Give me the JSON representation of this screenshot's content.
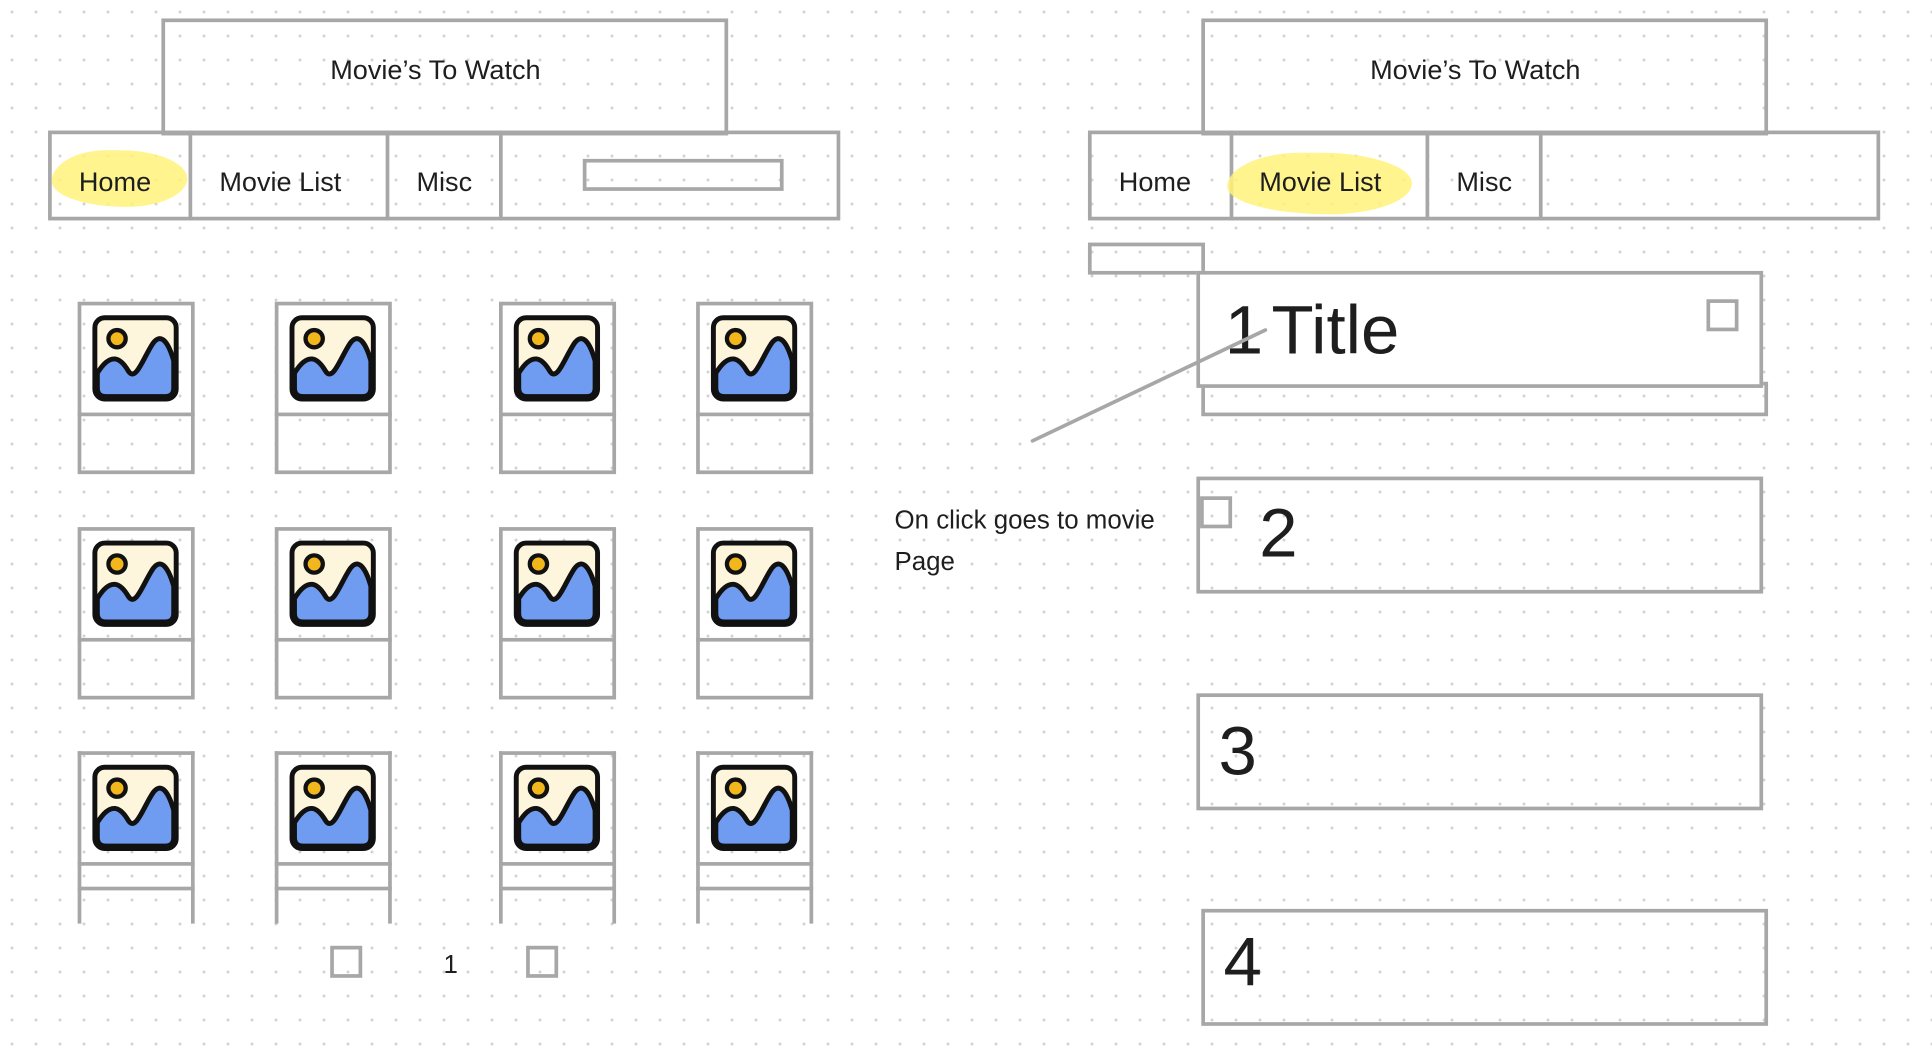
{
  "left_wireframe": {
    "title": "Movie’s To Watch",
    "nav": [
      "Home",
      "Movie List",
      "Misc"
    ],
    "active_tab": "Home",
    "pager_page": "1"
  },
  "right_wireframe": {
    "title": "Movie’s To Watch",
    "nav": [
      "Home",
      "Movie List",
      "Misc"
    ],
    "active_tab": "Movie List",
    "rows": [
      {
        "number": "1",
        "title": "Title"
      },
      {
        "number": "2"
      },
      {
        "number": "3"
      },
      {
        "number": "4"
      }
    ]
  },
  "annotation": {
    "line1": "On click goes to movie",
    "line2": "Page"
  },
  "colors": {
    "wire": "#a7a7a7",
    "highlight": "#fff27a",
    "icon_frame": "#fdf5dc",
    "icon_mountain": "#6f9cf0",
    "icon_sun": "#f2b71c"
  }
}
